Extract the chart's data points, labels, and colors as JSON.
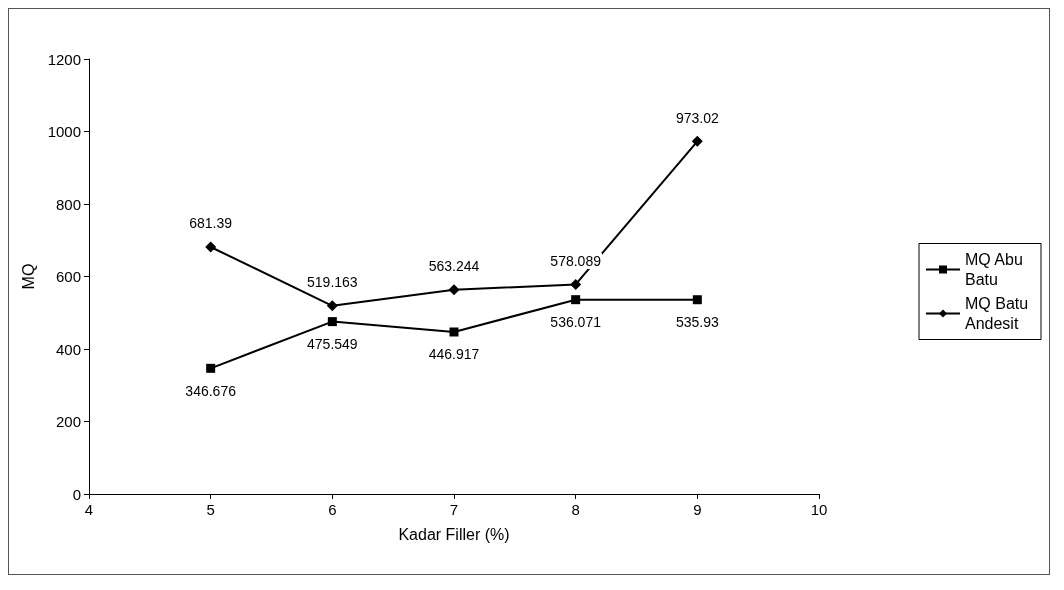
{
  "chart_data": {
    "type": "line",
    "xlabel": "Kadar Filler (%)",
    "ylabel": "MQ",
    "x": [
      5,
      6,
      7,
      8,
      9
    ],
    "series": [
      {
        "name": "MQ Abu Batu",
        "color": "#000000",
        "marker": "square",
        "values": [
          346.676,
          475.549,
          446.917,
          536.071,
          535.93
        ]
      },
      {
        "name": "MQ Batu Andesit",
        "color": "#000000",
        "marker": "diamond",
        "values": [
          681.39,
          519.163,
          563.244,
          578.089,
          973.02
        ]
      }
    ],
    "xlim": [
      4,
      10
    ],
    "xticks": [
      4,
      5,
      6,
      7,
      8,
      9,
      10
    ],
    "ylim": [
      0,
      1200
    ],
    "yticks": [
      0,
      200,
      400,
      600,
      800,
      1000,
      1200
    ],
    "grid": false,
    "legend": "right",
    "data_labels": true,
    "line_style": "solid"
  }
}
